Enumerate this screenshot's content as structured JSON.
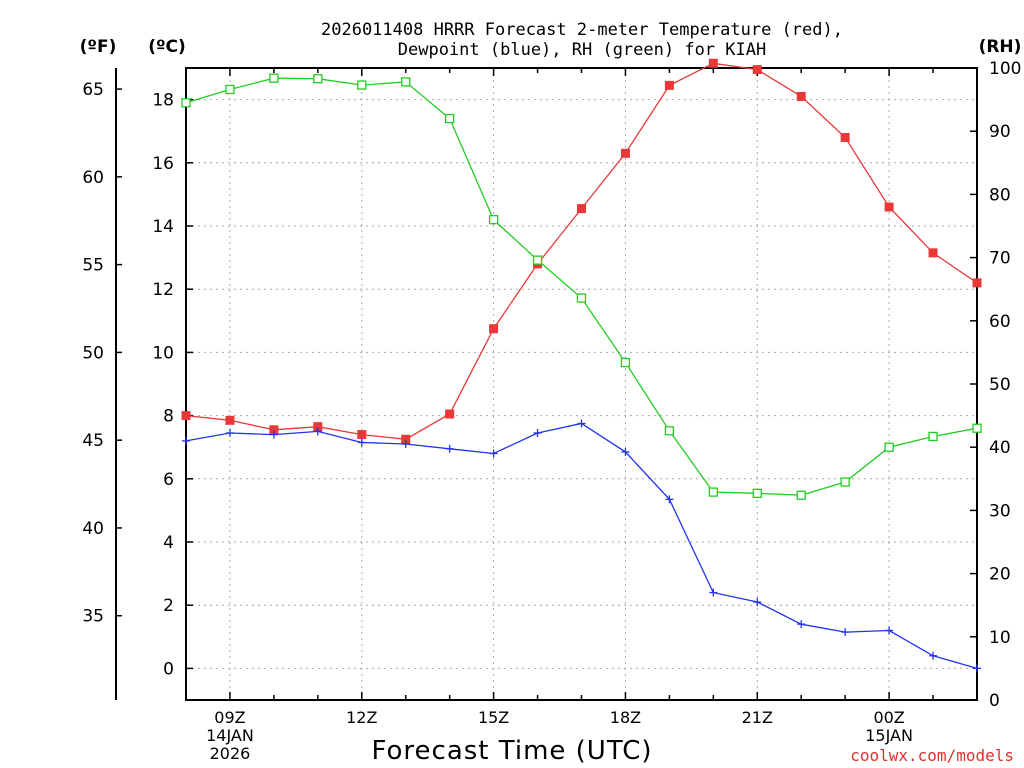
{
  "chart_data": {
    "type": "line",
    "title_line1": "2026011408 HRRR Forecast 2-meter Temperature (red),",
    "title_line2": "Dewpoint (blue), RH (green) for KIAH",
    "units": {
      "fahrenheit": "(ºF)",
      "celsius": "(ºC)",
      "rh": "(RH)"
    },
    "xlabel": "Forecast Time (UTC)",
    "credit": "coolwx.com/models",
    "x_hours": [
      8,
      9,
      10,
      11,
      12,
      13,
      14,
      15,
      16,
      17,
      18,
      19,
      20,
      21,
      22,
      23,
      24,
      25,
      26
    ],
    "x_range": [
      8,
      26
    ],
    "x_ticks": [
      {
        "hour": 9,
        "lines": [
          "09Z",
          "14JAN",
          "2026"
        ]
      },
      {
        "hour": 12,
        "lines": [
          "12Z"
        ]
      },
      {
        "hour": 15,
        "lines": [
          "15Z"
        ]
      },
      {
        "hour": 18,
        "lines": [
          "18Z"
        ]
      },
      {
        "hour": 21,
        "lines": [
          "21Z"
        ]
      },
      {
        "hour": 24,
        "lines": [
          "00Z",
          "15JAN"
        ]
      }
    ],
    "celsius_axis": {
      "range": [
        -1,
        19
      ],
      "ticks": [
        0,
        2,
        4,
        6,
        8,
        10,
        12,
        14,
        16,
        18
      ]
    },
    "fahrenheit_axis": {
      "ticks": [
        35,
        40,
        45,
        50,
        55,
        60,
        65
      ]
    },
    "rh_axis": {
      "range": [
        0,
        100
      ],
      "ticks": [
        0,
        10,
        20,
        30,
        40,
        50,
        60,
        70,
        80,
        90,
        100
      ]
    },
    "colors": {
      "temperature": "#e83838",
      "dewpoint": "#2233ee",
      "rh": "#22cc22",
      "grid": "#aaaaaa"
    },
    "series": [
      {
        "name": "Temperature",
        "axis": "celsius",
        "marker": "filled-square",
        "values": [
          8.0,
          7.85,
          7.55,
          7.65,
          7.4,
          7.25,
          8.05,
          10.75,
          12.8,
          14.55,
          16.3,
          18.45,
          19.15,
          18.95,
          18.1,
          16.8,
          14.6,
          13.15,
          12.2
        ]
      },
      {
        "name": "Dewpoint",
        "axis": "celsius",
        "marker": "plus",
        "values": [
          7.2,
          7.45,
          7.4,
          7.5,
          7.15,
          7.1,
          6.95,
          6.8,
          7.45,
          7.75,
          6.85,
          5.35,
          2.4,
          2.1,
          1.4,
          1.15,
          1.2,
          0.4,
          0.0
        ]
      },
      {
        "name": "RH",
        "axis": "rh",
        "marker": "open-square",
        "values": [
          94.5,
          96.6,
          98.4,
          98.3,
          97.3,
          97.8,
          92.0,
          76.0,
          69.6,
          63.6,
          53.4,
          42.6,
          32.9,
          32.7,
          32.4,
          34.5,
          40.0,
          41.7,
          43.0
        ]
      }
    ]
  }
}
